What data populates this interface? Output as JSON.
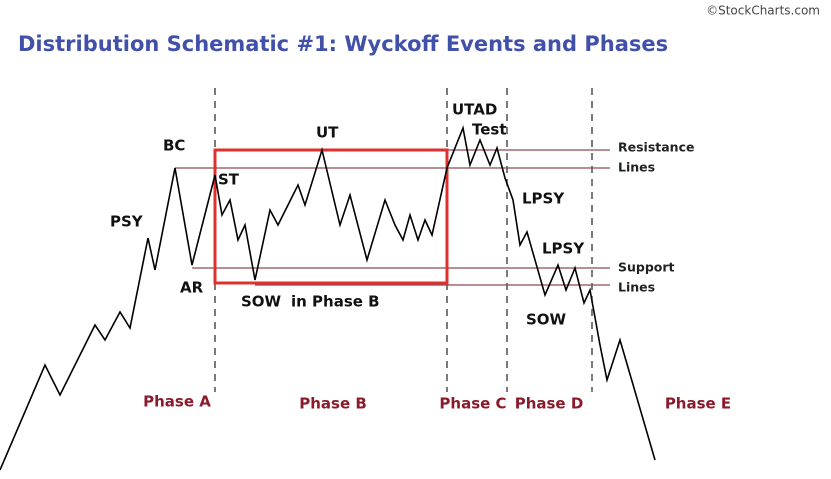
{
  "header": {
    "title": "Distribution Schematic #1: Wyckoff Events and Phases",
    "credit": "©StockCharts.com"
  },
  "events": [
    "PSY",
    "BC",
    "ST",
    "AR",
    "UT",
    "SOW",
    "in Phase B",
    "UTAD",
    "Test",
    "LPSY",
    "LPSY",
    "SOW"
  ],
  "phases": [
    "Phase A",
    "Phase B",
    "Phase C",
    "Phase D",
    "Phase E"
  ],
  "line_labels": [
    "Resistance",
    "Lines",
    "Support",
    "Lines"
  ]
}
